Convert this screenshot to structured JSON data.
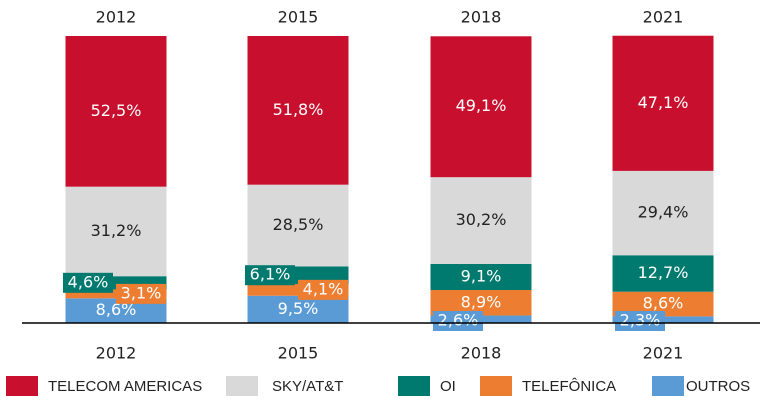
{
  "chart_data": {
    "type": "stacked_bar",
    "categories": [
      "2012",
      "2015",
      "2018",
      "2021"
    ],
    "ylim": [
      0,
      100
    ],
    "series": [
      {
        "name": "TELECOM AMERICAS",
        "color": "#c8102e",
        "values": [
          52.5,
          51.8,
          49.1,
          47.1
        ],
        "value_labels": [
          "52,5%",
          "51,8%",
          "49,1%",
          "47,1%"
        ]
      },
      {
        "name": "SKY/AT&T",
        "color": "#d9d9d9",
        "values": [
          31.2,
          28.5,
          30.2,
          29.4
        ],
        "value_labels": [
          "31,2%",
          "28,5%",
          "30,2%",
          "29,4%"
        ]
      },
      {
        "name": "OI",
        "color": "#007a6e",
        "values": [
          4.6,
          6.1,
          9.1,
          12.7
        ],
        "value_labels": [
          "4,6%",
          "6,1%",
          "9,1%",
          "12,7%"
        ]
      },
      {
        "name": "TELEFÔNICA",
        "color": "#ed7d31",
        "values": [
          3.1,
          4.1,
          8.9,
          8.6
        ],
        "value_labels": [
          "3,1%",
          "4,1%",
          "8,9%",
          "8,6%"
        ]
      },
      {
        "name": "OUTROS",
        "color": "#5b9bd5",
        "values": [
          8.6,
          9.5,
          2.6,
          2.3
        ],
        "value_labels": [
          "8,6%",
          "9,5%",
          "2,6%",
          "2,3%"
        ]
      }
    ]
  }
}
